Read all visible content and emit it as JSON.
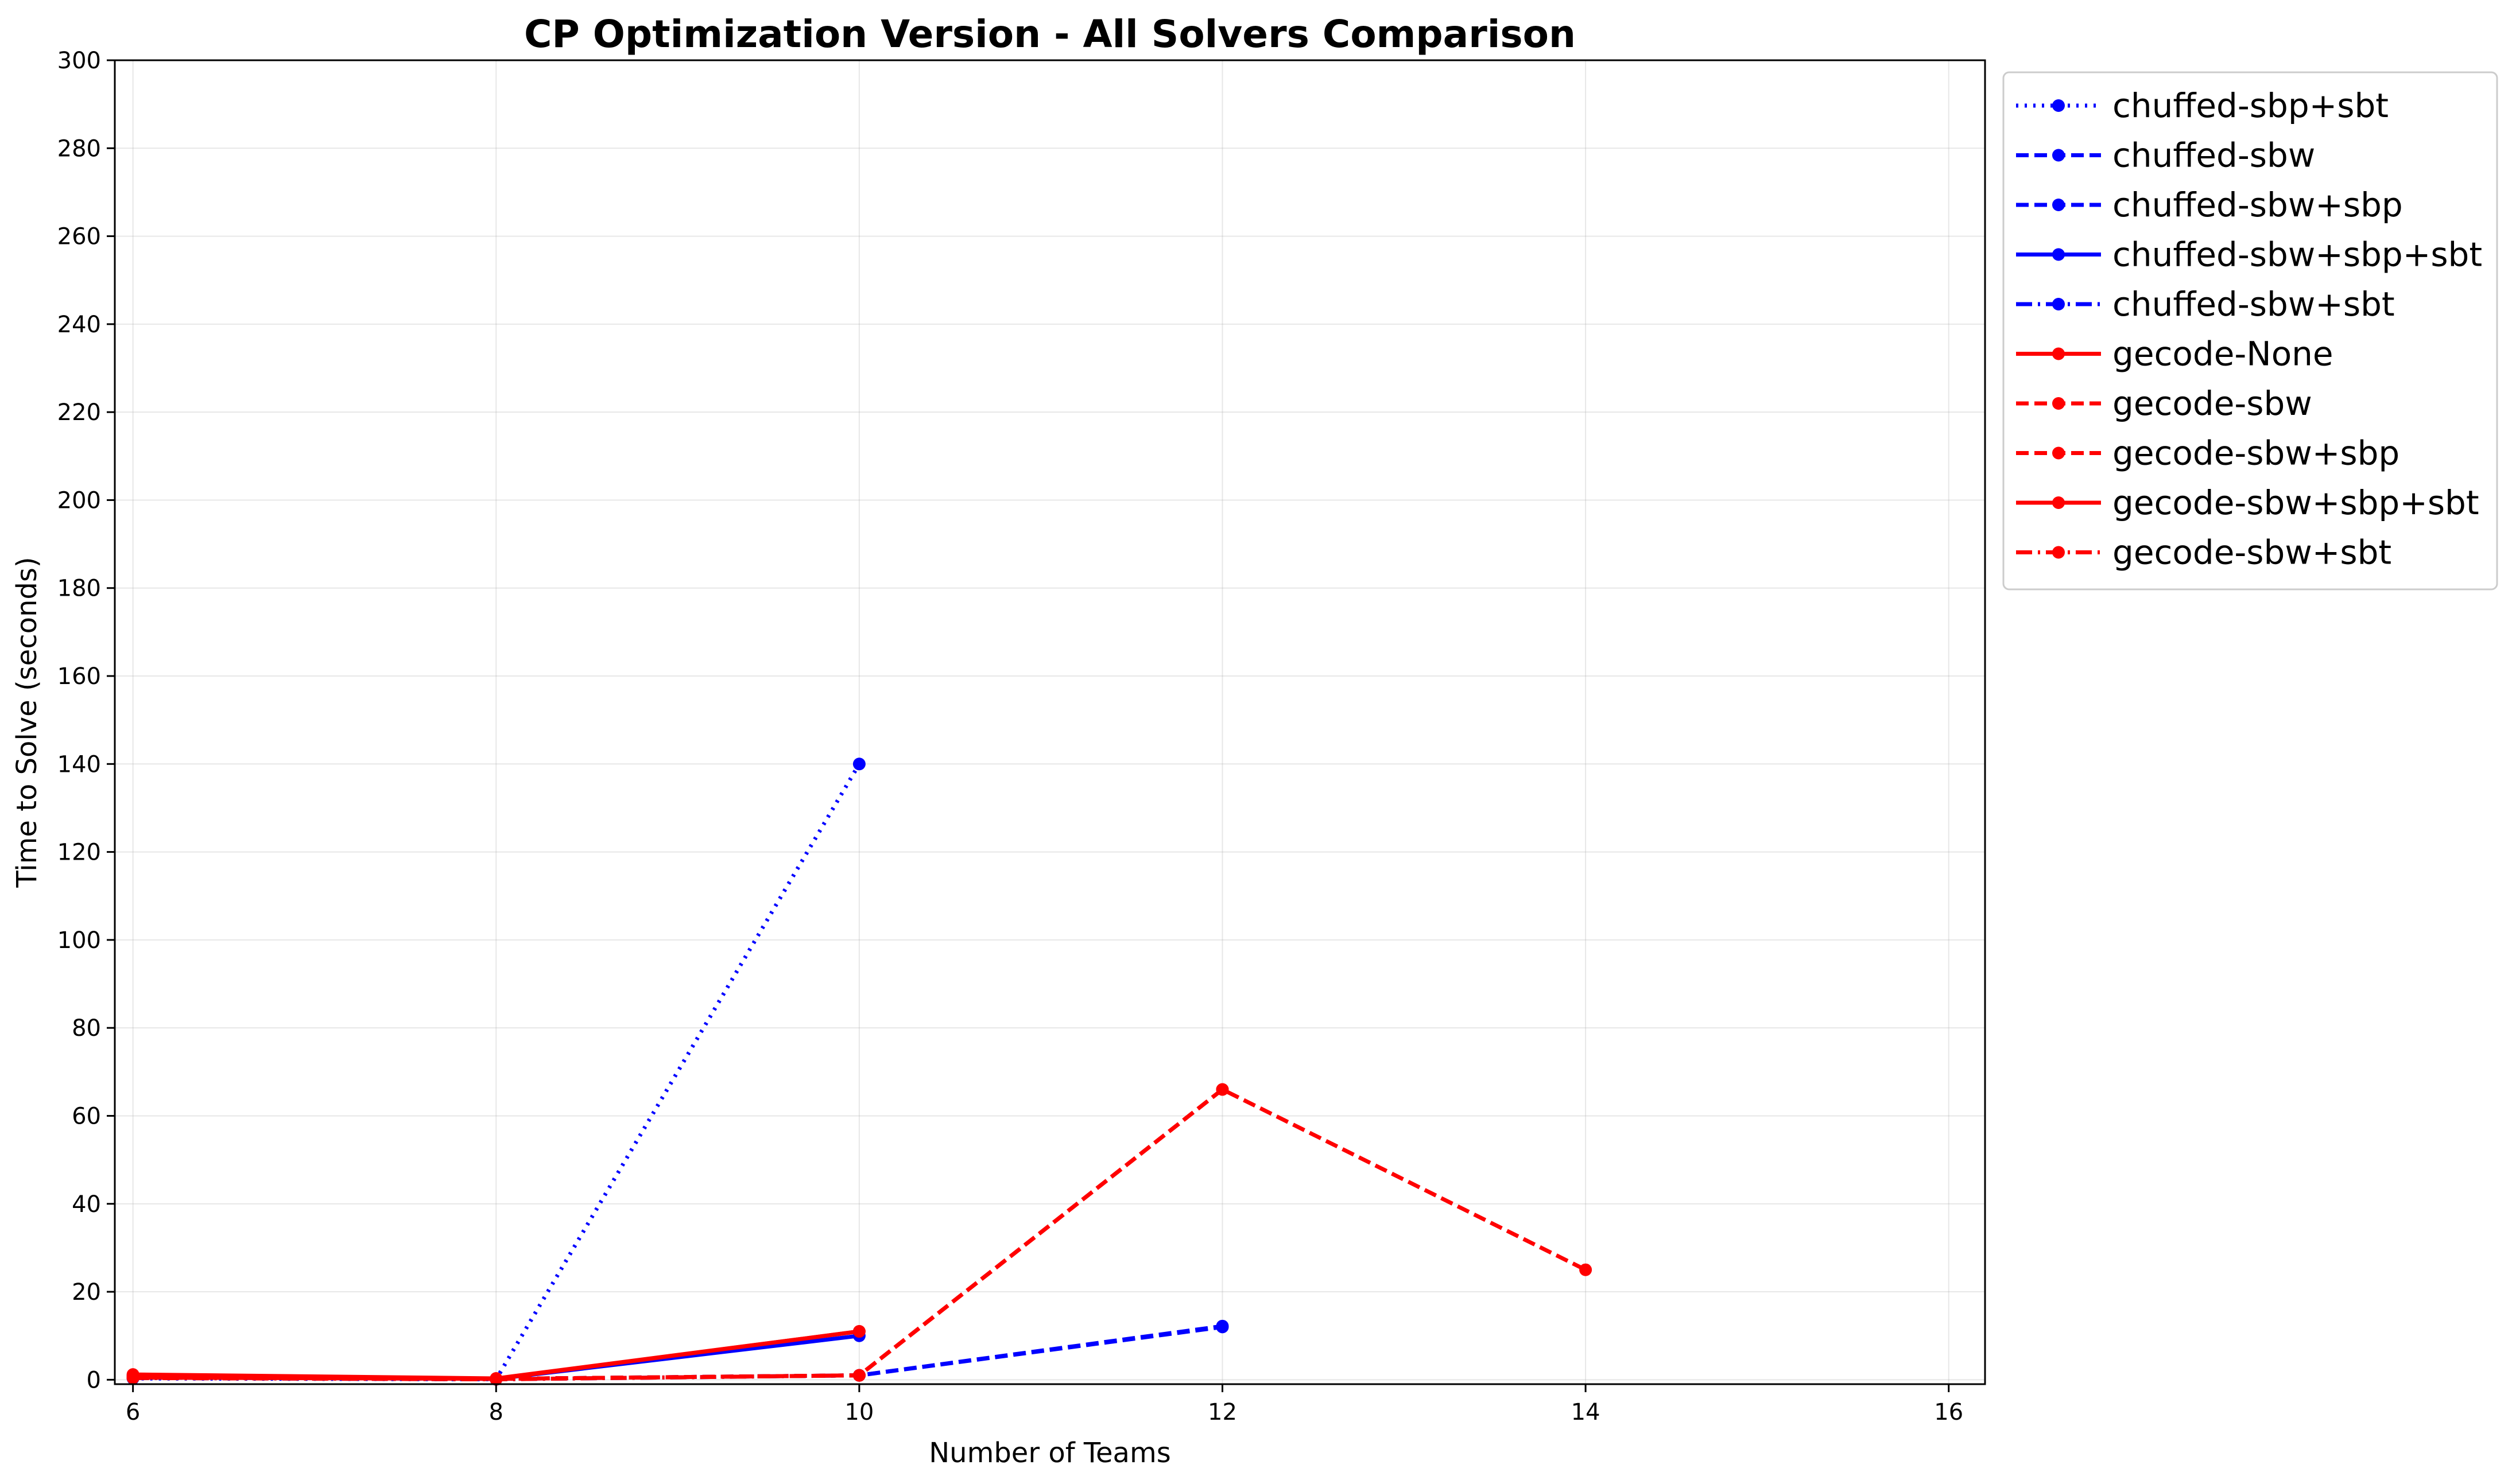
{
  "chart_data": {
    "type": "line",
    "title": "CP Optimization Version - All Solvers Comparison",
    "xlabel": "Number of Teams",
    "ylabel": "Time to Solve (seconds)",
    "xlim": [
      5.9,
      16.2
    ],
    "ylim": [
      -1,
      300
    ],
    "xticks": [
      6,
      8,
      10,
      12,
      14,
      16
    ],
    "yticks": [
      0,
      20,
      40,
      60,
      80,
      100,
      120,
      140,
      160,
      180,
      200,
      220,
      240,
      260,
      280,
      300
    ],
    "grid": true,
    "legend_position": "outside-top-right",
    "series": [
      {
        "name": "chuffed-sbp+sbt",
        "color": "#0000ff",
        "style": "dotted",
        "points": [
          [
            6,
            0.3
          ],
          [
            8,
            0.1
          ],
          [
            10,
            140
          ]
        ]
      },
      {
        "name": "chuffed-sbw",
        "color": "#0000ff",
        "style": "dashed",
        "points": [
          [
            6,
            0.5
          ],
          [
            8,
            0.2
          ],
          [
            10,
            1.0
          ],
          [
            12,
            12.0
          ]
        ]
      },
      {
        "name": "chuffed-sbw+sbp",
        "color": "#0000ff",
        "style": "dashed",
        "points": [
          [
            6,
            1.0
          ],
          [
            8,
            0.2
          ],
          [
            10,
            1.0
          ],
          [
            12,
            12.2
          ]
        ]
      },
      {
        "name": "chuffed-sbw+sbp+sbt",
        "color": "#0000ff",
        "style": "solid",
        "points": [
          [
            6,
            0.6
          ],
          [
            8,
            0.2
          ],
          [
            10,
            10.0
          ]
        ]
      },
      {
        "name": "chuffed-sbw+sbt",
        "color": "#0000ff",
        "style": "dashdot",
        "points": [
          [
            6,
            0.4
          ],
          [
            8,
            0.1
          ],
          [
            10,
            1.0
          ]
        ]
      },
      {
        "name": "gecode-None",
        "color": "#ff0000",
        "style": "solid",
        "points": [
          [
            6,
            0.5
          ],
          [
            8,
            0.2
          ],
          [
            10,
            11.0
          ]
        ]
      },
      {
        "name": "gecode-sbw",
        "color": "#ff0000",
        "style": "dashed",
        "points": [
          [
            6,
            0.8
          ],
          [
            8,
            0.2
          ],
          [
            10,
            1.0
          ],
          [
            12,
            66.0
          ]
        ]
      },
      {
        "name": "gecode-sbw+sbp",
        "color": "#ff0000",
        "style": "dashed",
        "points": [
          [
            6,
            0.6
          ],
          [
            8,
            0.2
          ],
          [
            10,
            1.0
          ],
          [
            12,
            66.0
          ],
          [
            14,
            25.0
          ]
        ]
      },
      {
        "name": "gecode-sbw+sbp+sbt",
        "color": "#ff0000",
        "style": "solid",
        "points": [
          [
            6,
            1.2
          ],
          [
            8,
            0.3
          ],
          [
            10,
            11.0
          ]
        ]
      },
      {
        "name": "gecode-sbw+sbt",
        "color": "#ff0000",
        "style": "dashdot",
        "points": [
          [
            6,
            0.4
          ],
          [
            8,
            0.1
          ],
          [
            10,
            1.0
          ]
        ]
      }
    ]
  }
}
